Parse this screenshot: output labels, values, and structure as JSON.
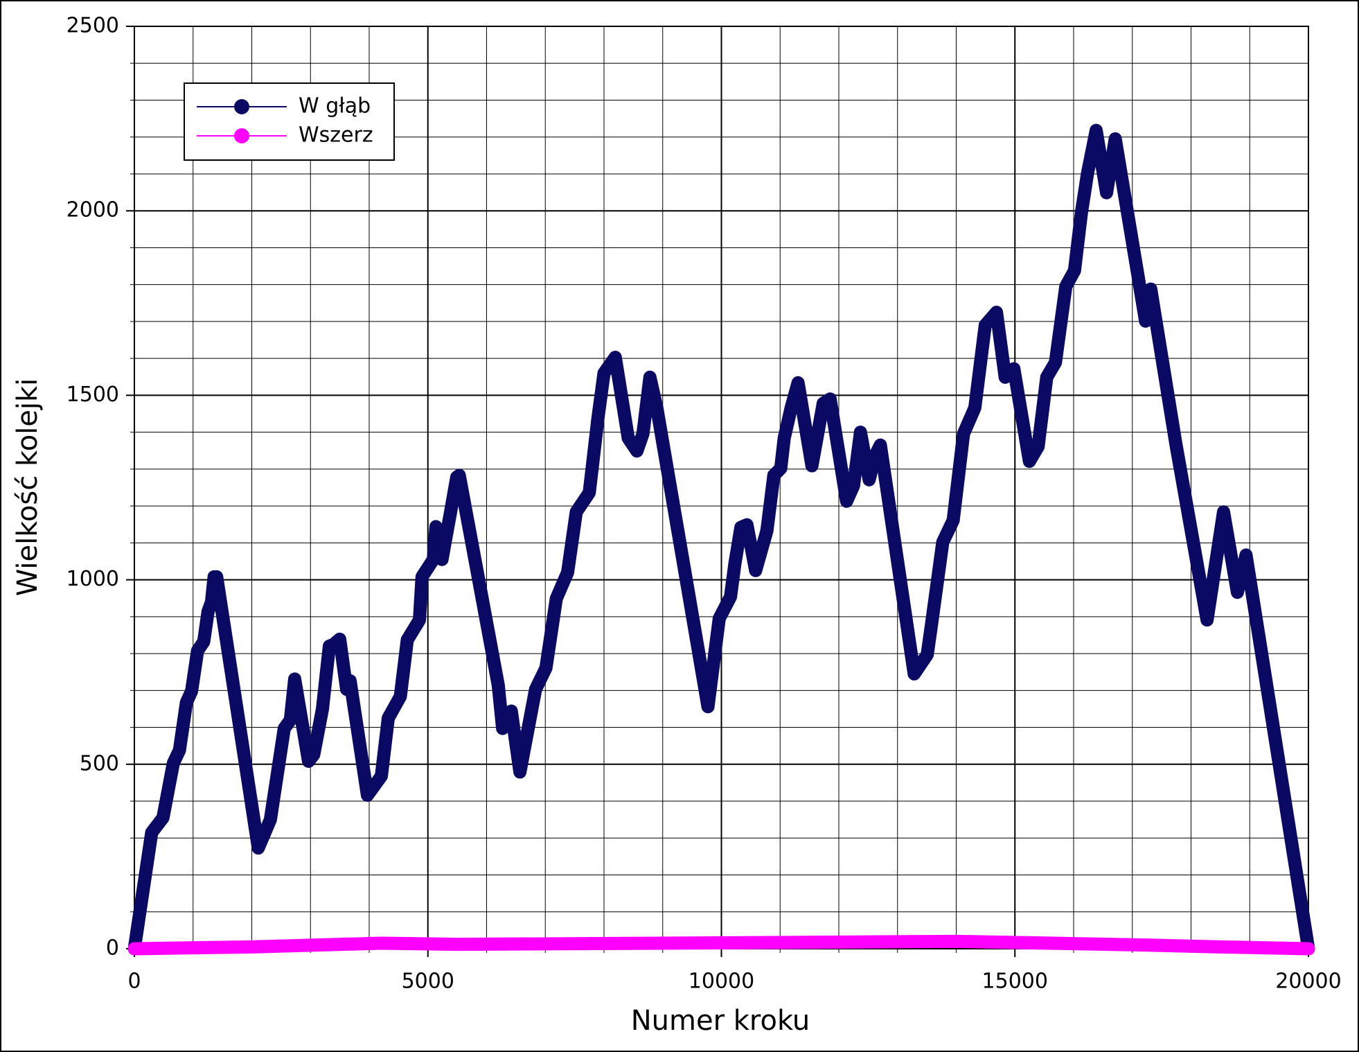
{
  "chart_data": {
    "type": "line",
    "xlabel": "Numer kroku",
    "ylabel": "Wielkość kolejki",
    "xlim": [
      0,
      20000
    ],
    "ylim": [
      0,
      2500
    ],
    "xticks": [
      0,
      5000,
      10000,
      15000,
      20000
    ],
    "yticks": [
      0,
      500,
      1000,
      1500,
      2000,
      2500
    ],
    "xminorticks": [
      1000,
      2000,
      3000,
      4000,
      6000,
      7000,
      8000,
      9000,
      11000,
      12000,
      13000,
      14000,
      16000,
      17000,
      18000,
      19000
    ],
    "yminorticks": [
      100,
      200,
      300,
      400,
      600,
      700,
      800,
      900,
      1100,
      1200,
      1300,
      1400,
      1600,
      1700,
      1800,
      1900,
      2100,
      2200,
      2300,
      2400
    ],
    "grid": true,
    "legend": "upper left",
    "series": [
      {
        "name": "W głąb",
        "color": "#0a0a64",
        "x": [
          0,
          295,
          487,
          664,
          768,
          886,
          974,
          1077,
          1181,
          1255,
          1314,
          1358,
          1402,
          2111,
          2317,
          2553,
          2657,
          2731,
          2967,
          3055,
          3203,
          3321,
          3395,
          3498,
          3616,
          3675,
          3970,
          4207,
          4325,
          4531,
          4649,
          4856,
          4900,
          5092,
          5137,
          5240,
          5387,
          5491,
          5535,
          6199,
          6273,
          6421,
          6568,
          6834,
          7011,
          7188,
          7380,
          7528,
          7749,
          7897,
          8000,
          8192,
          8413,
          8561,
          8664,
          8782,
          8900,
          9771,
          9963,
          10155,
          10229,
          10332,
          10435,
          10583,
          10775,
          10893,
          11011,
          11070,
          11188,
          11306,
          11542,
          11734,
          11852,
          12133,
          12251,
          12369,
          12517,
          12620,
          12708,
          13284,
          13506,
          13579,
          13771,
          13948,
          14125,
          14317,
          14494,
          14686,
          14834,
          14982,
          15247,
          15395,
          15542,
          15690,
          15867,
          16015,
          16133,
          16236,
          16384,
          16561,
          16709,
          17225,
          17314,
          17742,
          18273,
          18554,
          18790,
          18937,
          20000
        ],
        "values": [
          0,
          315,
          355,
          503,
          538,
          667,
          698,
          808,
          832,
          914,
          940,
          1008,
          1008,
          273,
          350,
          597,
          620,
          731,
          508,
          526,
          649,
          820,
          825,
          839,
          703,
          726,
          416,
          468,
          625,
          684,
          837,
          891,
          1008,
          1055,
          1144,
          1055,
          1184,
          1278,
          1283,
          714,
          597,
          644,
          479,
          703,
          761,
          949,
          1020,
          1184,
          1236,
          1438,
          1560,
          1603,
          1384,
          1349,
          1396,
          1549,
          1466,
          656,
          895,
          954,
          1043,
          1142,
          1149,
          1025,
          1133,
          1283,
          1302,
          1384,
          1466,
          1534,
          1309,
          1478,
          1490,
          1213,
          1255,
          1400,
          1271,
          1337,
          1365,
          745,
          797,
          879,
          1102,
          1161,
          1396,
          1466,
          1690,
          1725,
          1549,
          1572,
          1321,
          1361,
          1549,
          1589,
          1795,
          1838,
          1995,
          2101,
          2218,
          2049,
          2195,
          1701,
          1788,
          1368,
          891,
          1184,
          966,
          1067,
          0
        ]
      },
      {
        "name": "Wszerz",
        "color": "#ff00ff",
        "x": [
          0,
          2000,
          4200,
          5500,
          9000,
          14000,
          17200,
          18500,
          20000
        ],
        "values": [
          0,
          5,
          15,
          12,
          15,
          20,
          10,
          5,
          0
        ]
      }
    ]
  }
}
